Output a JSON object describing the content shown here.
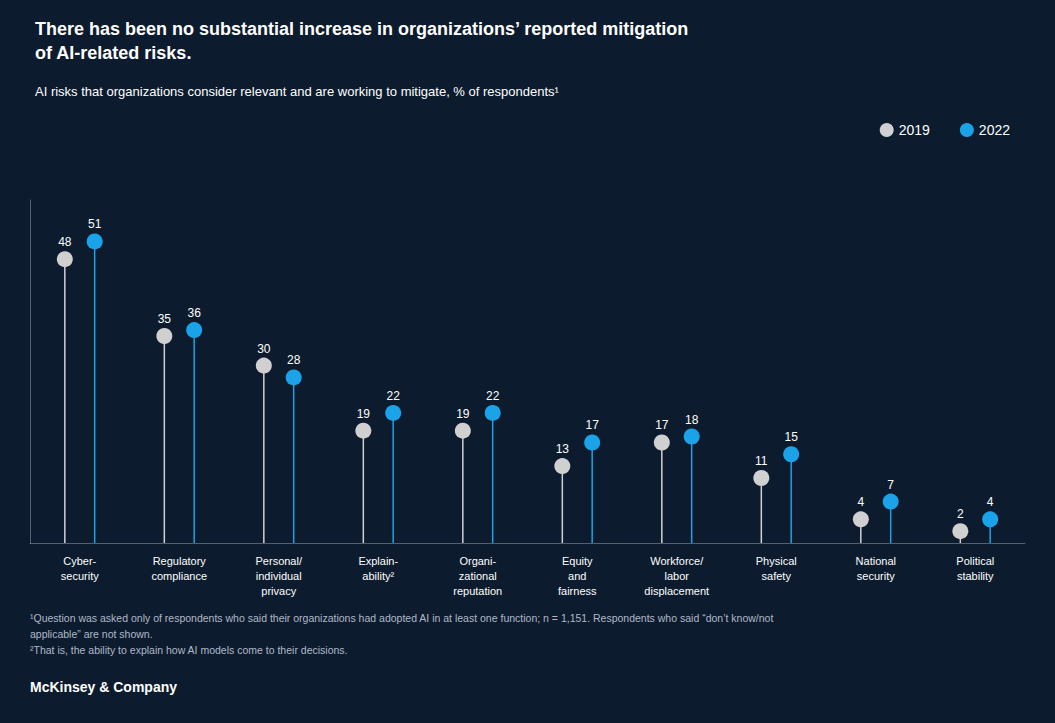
{
  "chart_data": {
    "type": "lollipop",
    "title": "There has been no substantial increase in organizations’ reported mitigation\nof AI-related risks.",
    "subtitle": "AI risks that organizations consider relevant and are working to mitigate, % of respondents¹",
    "categories": [
      "Cyber-\nsecurity",
      "Regulatory\ncompliance",
      "Personal/\nindividual\nprivacy",
      "Explain-\nability²",
      "Organi-\nzational\nreputation",
      "Equity\nand\nfairness",
      "Workforce/\nlabor\ndisplacement",
      "Physical\nsafety",
      "National\nsecurity",
      "Political\nstability"
    ],
    "series": [
      {
        "name": "2019",
        "color": "#d0d0d0",
        "values": [
          48,
          35,
          30,
          19,
          19,
          13,
          17,
          11,
          4,
          2
        ]
      },
      {
        "name": "2022",
        "color": "#1aa3e8",
        "values": [
          51,
          36,
          28,
          22,
          22,
          17,
          18,
          15,
          7,
          4
        ]
      }
    ],
    "ylim": [
      0,
      58
    ],
    "tick_labels": "x",
    "grid": false,
    "legend": "top-right",
    "data_labels": true,
    "annotations": [
      "¹Question was asked only of respondents who said their organizations had adopted AI in at least one function; n = 1,151. Respondents who said “don’t know/not",
      "applicable” are not shown.",
      "²That is, the ability to explain how AI models come to their decisions."
    ],
    "source": "McKinsey & Company"
  }
}
